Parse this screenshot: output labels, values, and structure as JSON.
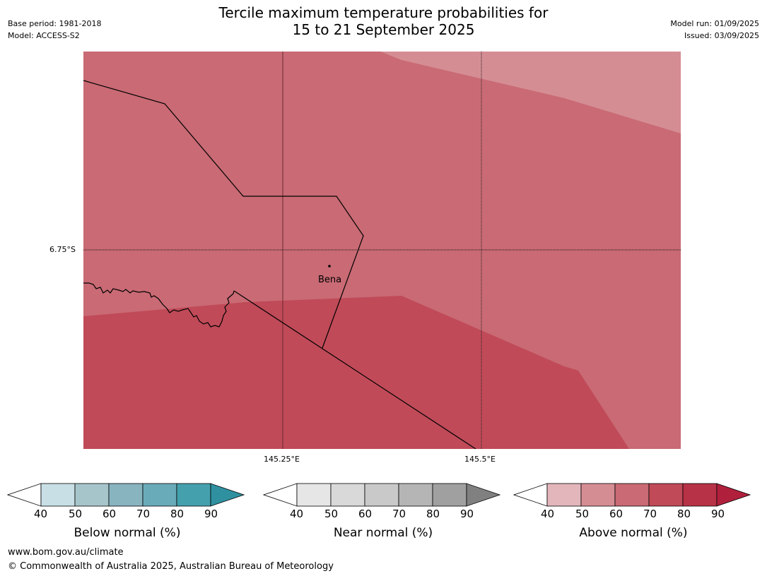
{
  "header": {
    "title_line1": "Tercile maximum temperature probabilities for",
    "title_line2": "15 to 21 September 2025",
    "base_period": "Base period: 1981-2018",
    "model": "Model: ACCESS-S2",
    "model_run": "Model run: 01/09/2025",
    "issued": "Issued: 03/09/2025"
  },
  "map": {
    "lat_label": "6.75°S",
    "lon_labels": [
      "145.25°E",
      "145.5°E"
    ],
    "place": "Bena",
    "colors": {
      "light": "#d58d94",
      "mid": "#c96a74",
      "dark": "#c04a58"
    }
  },
  "colorbars": [
    {
      "title": "Below normal (%)",
      "ticks": [
        "40",
        "50",
        "60",
        "70",
        "80",
        "90"
      ],
      "colors": [
        "#ffffff",
        "#c8e0e5",
        "#a6c5cb",
        "#88b4c0",
        "#6aabb9",
        "#45a0ae",
        "#2f90a0"
      ]
    },
    {
      "title": "Near normal (%)",
      "ticks": [
        "40",
        "50",
        "60",
        "70",
        "80",
        "90"
      ],
      "colors": [
        "#ffffff",
        "#e6e6e6",
        "#d9d9d9",
        "#c9c9c9",
        "#b5b5b5",
        "#a0a0a0",
        "#808080"
      ]
    },
    {
      "title": "Above normal (%)",
      "ticks": [
        "40",
        "50",
        "60",
        "70",
        "80",
        "90"
      ],
      "colors": [
        "#ffffff",
        "#e2b6bb",
        "#d58d94",
        "#c96a74",
        "#c04a58",
        "#b83247",
        "#b0203c"
      ]
    }
  ],
  "footer": {
    "url": "www.bom.gov.au/climate",
    "copyright": "© Commonwealth of Australia 2025, Australian Bureau of Meteorology"
  }
}
